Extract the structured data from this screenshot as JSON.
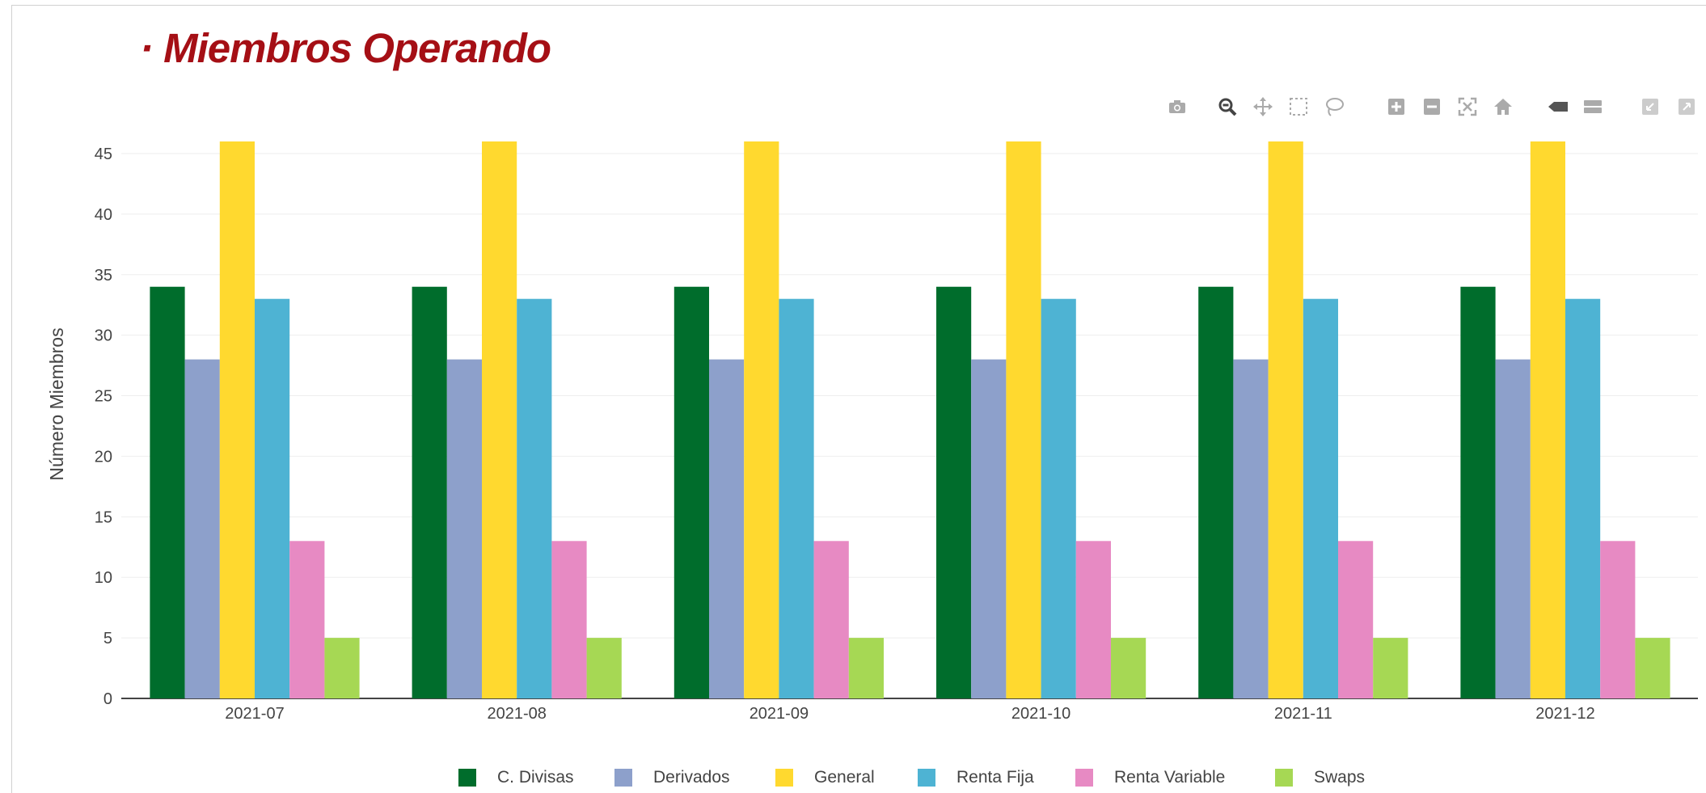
{
  "title": "· Miembros Operando",
  "modebar": {
    "icons": [
      "camera-icon",
      "zoom-icon",
      "pan-icon",
      "box-select-icon",
      "lasso-select-icon",
      "zoom-in-icon",
      "zoom-out-icon",
      "autoscale-icon",
      "reset-axes-icon",
      "hover-closest-icon",
      "hover-compare-icon",
      "toggle-spike-lines-icon",
      "toggle-spike-lines-2-icon"
    ]
  },
  "chart_data": {
    "type": "bar",
    "title": "· Miembros Operando",
    "xlabel": "",
    "ylabel": "Número Miembros",
    "ylim": [
      0,
      46
    ],
    "yticks": [
      0,
      5,
      10,
      15,
      20,
      25,
      30,
      35,
      40,
      45
    ],
    "grid": true,
    "legend_position": "bottom",
    "categories": [
      "2021-07",
      "2021-08",
      "2021-09",
      "2021-10",
      "2021-11",
      "2021-12"
    ],
    "series": [
      {
        "name": "C. Divisas",
        "color": "#006d2c",
        "values": [
          34,
          34,
          34,
          34,
          34,
          34
        ]
      },
      {
        "name": "Derivados",
        "color": "#8da0cb",
        "values": [
          28,
          28,
          28,
          28,
          28,
          28
        ]
      },
      {
        "name": "General",
        "color": "#ffd92f",
        "values": [
          46,
          46,
          46,
          46,
          46,
          46
        ]
      },
      {
        "name": "Renta Fija",
        "color": "#4eb3d3",
        "values": [
          33,
          33,
          33,
          33,
          33,
          33
        ]
      },
      {
        "name": "Renta Variable",
        "color": "#e78ac3",
        "values": [
          13,
          13,
          13,
          13,
          13,
          13
        ]
      },
      {
        "name": "Swaps",
        "color": "#a6d854",
        "values": [
          5,
          5,
          5,
          5,
          5,
          5
        ]
      }
    ]
  }
}
